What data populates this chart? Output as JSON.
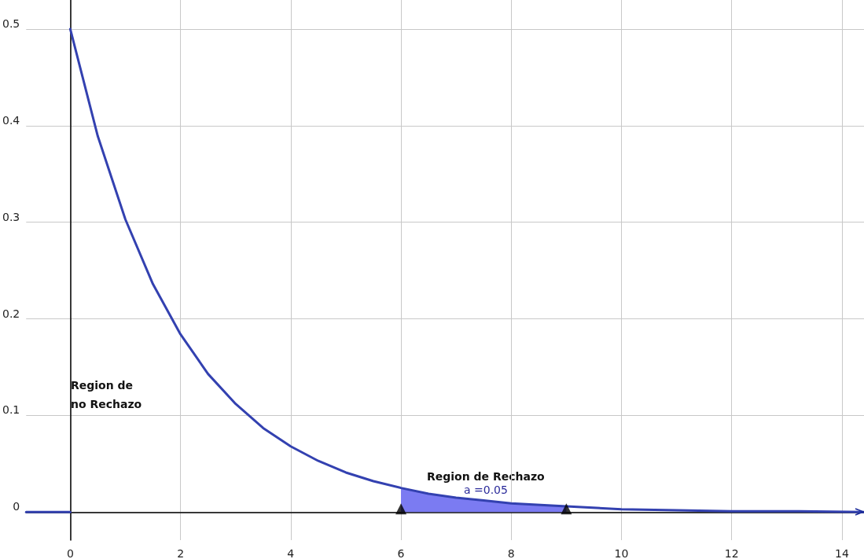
{
  "chart_data": {
    "type": "line",
    "xlim": [
      -0.8,
      14.4
    ],
    "ylim": [
      -0.029,
      0.53
    ],
    "xticks": [
      0,
      2,
      4,
      6,
      8,
      10,
      12,
      14
    ],
    "yticks": [
      0,
      0.1,
      0.2,
      0.3,
      0.4,
      0.5
    ],
    "grid": true,
    "marker": "none",
    "line_style": "solid",
    "series": [
      {
        "color": "#3341b0",
        "x": [
          -0.8,
          0
        ],
        "values": [
          0,
          0
        ]
      },
      {
        "color": "#3341b0",
        "x": [
          0,
          0.5,
          1,
          1.5,
          2,
          2.5,
          3,
          3.5,
          4,
          4.5,
          5,
          5.5,
          6,
          6.5,
          7,
          7.5,
          8,
          9,
          10,
          11,
          12,
          13,
          14.4
        ],
        "values": [
          0.5,
          0.389,
          0.303,
          0.236,
          0.184,
          0.143,
          0.112,
          0.087,
          0.068,
          0.053,
          0.041,
          0.032,
          0.025,
          0.019,
          0.015,
          0.012,
          0.009,
          0.006,
          0.003,
          0.002,
          0.001,
          0.001,
          0
        ]
      },
      {
        "type": "area",
        "color": "#7b7bf2",
        "x": [
          6,
          6.5,
          7,
          7.5,
          8,
          8.5,
          9
        ],
        "values": [
          0.025,
          0.019,
          0.015,
          0.012,
          0.009,
          0.007,
          0.006
        ]
      },
      {
        "type": "scatter",
        "marker": "triangle",
        "color": "#000000",
        "x": [
          6,
          9
        ],
        "values": [
          0,
          0
        ]
      }
    ],
    "annotations": [
      "Region de\nno Rechazo",
      "Region de Rechazo",
      "a =0.05"
    ]
  }
}
